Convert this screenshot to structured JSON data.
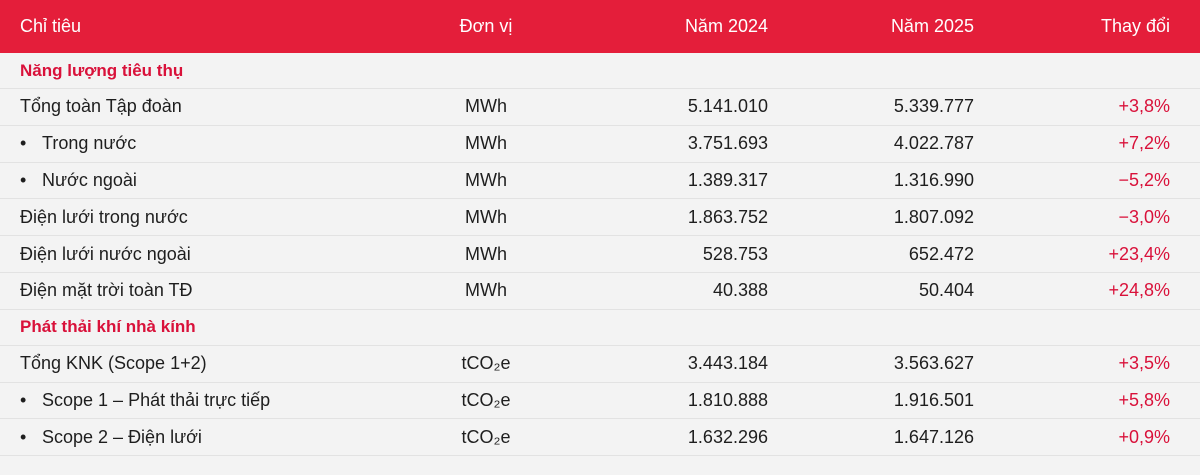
{
  "header": {
    "col1": "Chỉ tiêu",
    "col2": "Đơn vị",
    "col3": "Năm 2024",
    "col4": "Năm 2025",
    "col5": "Thay đổi"
  },
  "sections": [
    {
      "title": "Năng lượng tiêu thụ",
      "rows": [
        {
          "label": "Tổng toàn Tập đoàn",
          "bullet": "",
          "unit": "MWh",
          "y2024": "5.141.010",
          "y2025": "5.339.777",
          "change": "+3,8%"
        },
        {
          "label": "Trong nước",
          "bullet": "•",
          "unit": "MWh",
          "y2024": "3.751.693",
          "y2025": "4.022.787",
          "change": "+7,2%"
        },
        {
          "label": "Nước ngoài",
          "bullet": "•",
          "unit": "MWh",
          "y2024": "1.389.317",
          "y2025": "1.316.990",
          "change": "−5,2%"
        },
        {
          "label": "Điện lưới trong nước",
          "bullet": "",
          "unit": "MWh",
          "y2024": "1.863.752",
          "y2025": "1.807.092",
          "change": "−3,0%"
        },
        {
          "label": "Điện lưới nước ngoài",
          "bullet": "",
          "unit": "MWh",
          "y2024": "528.753",
          "y2025": "652.472",
          "change": "+23,4%"
        },
        {
          "label": "Điện mặt trời toàn TĐ",
          "bullet": "",
          "unit": "MWh",
          "y2024": "40.388",
          "y2025": "50.404",
          "change": "+24,8%"
        }
      ]
    },
    {
      "title": "Phát thải khí nhà kính",
      "rows": [
        {
          "label": "Tổng KNK (Scope 1+2)",
          "bullet": "",
          "unit": "tCO₂e",
          "y2024": "3.443.184",
          "y2025": "3.563.627",
          "change": "+3,5%"
        },
        {
          "label": "Scope 1 – Phát thải trực tiếp",
          "bullet": "•",
          "unit": "tCO₂e",
          "y2024": "1.810.888",
          "y2025": "1.916.501",
          "change": "+5,8%"
        },
        {
          "label": "Scope 2 – Điện lưới",
          "bullet": "•",
          "unit": "tCO₂e",
          "y2024": "1.632.296",
          "y2025": "1.647.126",
          "change": "+0,9%"
        }
      ]
    }
  ]
}
